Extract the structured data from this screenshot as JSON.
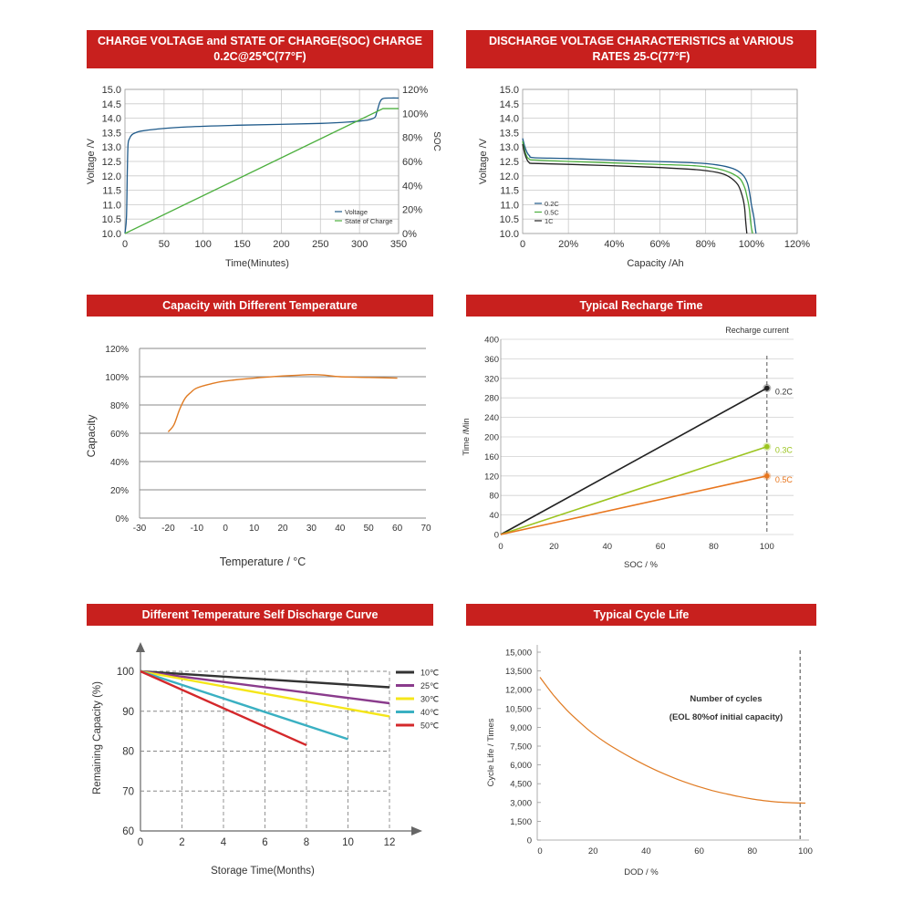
{
  "charts": [
    {
      "banner_line1": "CHARGE VOLTAGE and STATE OF CHARGE(SOC) CHARGE",
      "banner_line2": "0.2C@25℃(77°F)",
      "chart_data": {
        "type": "line",
        "title": "CHARGE VOLTAGE and STATE OF CHARGE(SOC) CHARGE 0.2C@25℃(77°F)",
        "xlabel": "Time(Minutes)",
        "ylabel": "Voltage  /V",
        "y2label": "SOC",
        "xlim": [
          0,
          350
        ],
        "ylim": [
          10.0,
          15.0
        ],
        "y2lim": [
          0,
          120
        ],
        "x_ticks": [
          "0",
          "50",
          "100",
          "150",
          "200",
          "250",
          "300",
          "350"
        ],
        "y_ticks": [
          "10.0",
          "10.5",
          "11.0",
          "11.5",
          "12.0",
          "12.5",
          "13.0",
          "13.5",
          "14.0",
          "14.5",
          "15.0"
        ],
        "y2_ticks": [
          "0%",
          "20%",
          "40%",
          "60%",
          "80%",
          "100%",
          "120%"
        ],
        "legend": "bottom-right",
        "series": [
          {
            "name": "Voltage",
            "axis": "left",
            "color": "#1f5a8a",
            "x": [
              0,
              2,
              3,
              4,
              6,
              8,
              10,
              14,
              20,
              40,
              80,
              150,
              250,
              300,
              318,
              322,
              326,
              330,
              340,
              350
            ],
            "y": [
              10.0,
              10.6,
              12.2,
              13.1,
              13.3,
              13.4,
              13.45,
              13.5,
              13.55,
              13.62,
              13.7,
              13.76,
              13.82,
              13.9,
              14.0,
              14.2,
              14.55,
              14.68,
              14.7,
              14.7
            ]
          },
          {
            "name": "State of Charge",
            "axis": "right",
            "color": "#4caf3e",
            "x": [
              0,
              330,
              350
            ],
            "y": [
              0,
              104,
              104
            ]
          }
        ]
      }
    },
    {
      "banner_line1": "DISCHARGE VOLTAGE CHARACTERISTICS at VARIOUS",
      "banner_line2": "RATES 25-C(77°F)",
      "chart_data": {
        "type": "line",
        "title": "DISCHARGE VOLTAGE CHARACTERISTICS at VARIOUS RATES 25-C(77°F)",
        "xlabel": "Capacity  /Ah",
        "ylabel": "Voltage  /V",
        "xlim": [
          0,
          120
        ],
        "ylim": [
          10.0,
          15.0
        ],
        "x_ticks": [
          "0",
          "20%",
          "40%",
          "60%",
          "80%",
          "100%",
          "120%"
        ],
        "y_ticks": [
          "10.0",
          "10.5",
          "11.0",
          "11.5",
          "12.0",
          "12.5",
          "13.0",
          "13.5",
          "14.0",
          "14.5",
          "15.0"
        ],
        "legend": "bottom-left",
        "series": [
          {
            "name": "0.2C",
            "color": "#1f5a8a",
            "x": [
              0,
              1,
              2,
              3,
              5,
              20,
              50,
              75,
              85,
              92,
              96,
              98,
              99,
              100,
              101,
              101.5,
              102
            ],
            "y": [
              13.3,
              13.0,
              12.8,
              12.7,
              12.63,
              12.6,
              12.52,
              12.45,
              12.38,
              12.25,
              12.05,
              11.8,
              11.5,
              11.0,
              10.6,
              10.3,
              10.0
            ]
          },
          {
            "name": "0.5C",
            "color": "#4caf3e",
            "x": [
              0,
              1,
              2,
              3,
              5,
              20,
              50,
              75,
              85,
              91,
              95,
              97,
              98,
              99,
              99.5,
              100,
              100.5
            ],
            "y": [
              13.2,
              12.85,
              12.65,
              12.58,
              12.55,
              12.5,
              12.42,
              12.35,
              12.25,
              12.1,
              11.9,
              11.6,
              11.3,
              10.9,
              10.5,
              10.2,
              10.0
            ]
          },
          {
            "name": "1C",
            "color": "#222222",
            "x": [
              0,
              1,
              2,
              3,
              5,
              20,
              50,
              75,
              85,
              90,
              94,
              96,
              97,
              97.5,
              98
            ],
            "y": [
              13.1,
              12.75,
              12.55,
              12.45,
              12.43,
              12.4,
              12.32,
              12.22,
              12.12,
              11.98,
              11.7,
              11.3,
              10.9,
              10.4,
              10.0
            ]
          }
        ]
      }
    },
    {
      "banner": "Capacity with Different Temperature",
      "chart_data": {
        "type": "line",
        "title": "Capacity with Different Temperature",
        "xlabel": "Temperature / °C",
        "ylabel": "Capacity",
        "xlim": [
          -30,
          70
        ],
        "ylim": [
          0,
          120
        ],
        "x_ticks": [
          "-30",
          "-20",
          "-10",
          "0",
          "10",
          "20",
          "30",
          "40",
          "50",
          "60",
          "70"
        ],
        "y_ticks": [
          "0%",
          "20%",
          "40%",
          "60%",
          "80%",
          "100%",
          "120%"
        ],
        "series": [
          {
            "name": "",
            "color": "#e07b23",
            "x": [
              -20,
              -18,
              -16,
              -14,
              -12,
              -10,
              -5,
              0,
              10,
              20,
              25,
              30,
              35,
              40,
              50,
              60
            ],
            "y": [
              61,
              66,
              77,
              85,
              89,
              92,
              95,
              97,
              99,
              100.5,
              101,
              101.5,
              101,
              100,
              99.5,
              99
            ]
          }
        ]
      }
    },
    {
      "banner": "Typical Recharge Time",
      "chart_data": {
        "type": "line",
        "title": "Typical Recharge Time",
        "xlabel": "SOC / %",
        "ylabel": "Time /Min",
        "xlim": [
          0,
          110
        ],
        "ylim": [
          0,
          400
        ],
        "x_ticks": [
          "0",
          "20",
          "40",
          "60",
          "80",
          "100"
        ],
        "y_ticks": [
          "0",
          "40",
          "80",
          "120",
          "160",
          "200",
          "240",
          "280",
          "320",
          "360",
          "400"
        ],
        "annotation": "Recharge current",
        "series": [
          {
            "name": "0.2C",
            "color": "#222222",
            "x": [
              0,
              100
            ],
            "y": [
              0,
              300
            ]
          },
          {
            "name": "0.3C",
            "color": "#9bc41f",
            "x": [
              0,
              100
            ],
            "y": [
              0,
              180
            ]
          },
          {
            "name": "0.5C",
            "color": "#e8761e",
            "x": [
              0,
              100
            ],
            "y": [
              0,
              120
            ]
          }
        ]
      }
    },
    {
      "banner": "Different Temperature Self Discharge Curve",
      "chart_data": {
        "type": "line",
        "title": "Different Temperature Self Discharge Curve",
        "xlabel": "Storage Time(Months)",
        "ylabel": "Remaining Capacity (%)",
        "xlim": [
          0,
          13
        ],
        "ylim": [
          60,
          102
        ],
        "x_ticks": [
          "0",
          "2",
          "4",
          "6",
          "8",
          "10",
          "12"
        ],
        "y_ticks": [
          "60",
          "70",
          "80",
          "90",
          "100"
        ],
        "legend": "right",
        "series": [
          {
            "name": "10℃",
            "color": "#333333",
            "x": [
              0,
              12
            ],
            "y": [
              100,
              96
            ]
          },
          {
            "name": "25℃",
            "color": "#8a3b8c",
            "x": [
              0,
              12
            ],
            "y": [
              100,
              92
            ]
          },
          {
            "name": "30℃",
            "color": "#f5e61a",
            "x": [
              0,
              12
            ],
            "y": [
              100,
              88.7
            ]
          },
          {
            "name": "40℃",
            "color": "#3ab0c2",
            "x": [
              0,
              10
            ],
            "y": [
              100,
              83
            ]
          },
          {
            "name": "50℃",
            "color": "#d4282b",
            "x": [
              0,
              8
            ],
            "y": [
              100,
              81.5
            ]
          }
        ]
      }
    },
    {
      "banner": "Typical Cycle Life",
      "chart_data": {
        "type": "line",
        "title": "Typical Cycle Life",
        "xlabel": "DOD / %",
        "ylabel": "Cycle Life / Times",
        "xlim": [
          0,
          100
        ],
        "ylim": [
          0,
          15000
        ],
        "x_ticks": [
          "0",
          "20",
          "40",
          "60",
          "80",
          "100"
        ],
        "y_ticks": [
          "0",
          "1,500",
          "3,000",
          "4,500",
          "6,000",
          "7,500",
          "9,000",
          "10,500",
          "12,000",
          "13,500",
          "15,000"
        ],
        "annotation_line1": "Number of cycles",
        "annotation_line2": "(EOL 80%of initial capacity)",
        "series": [
          {
            "name": "",
            "color": "#e07b23",
            "x": [
              0,
              5,
              10,
              15,
              20,
              25,
              30,
              35,
              40,
              45,
              50,
              55,
              60,
              65,
              70,
              75,
              80,
              85,
              90,
              95,
              100
            ],
            "y": [
              13000,
              11600,
              10400,
              9400,
              8500,
              7750,
              7100,
              6500,
              5950,
              5450,
              5000,
              4600,
              4250,
              3950,
              3700,
              3470,
              3280,
              3130,
              3030,
              2980,
              2950
            ]
          }
        ]
      }
    }
  ]
}
